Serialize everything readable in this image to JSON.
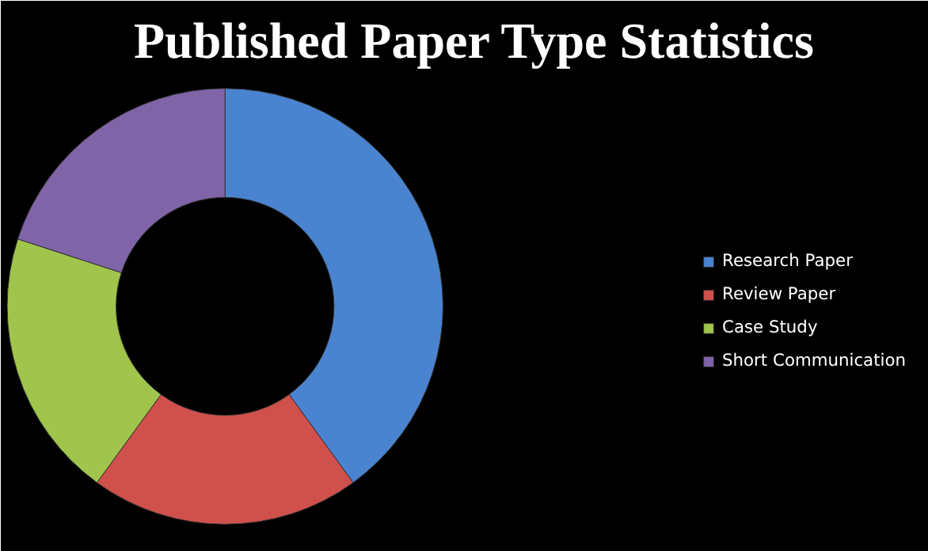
{
  "chart_data": {
    "type": "donut",
    "title": "Published Paper Type Statistics",
    "categories": [
      "Research Paper",
      "Review Paper",
      "Case Study",
      "Short Communication"
    ],
    "values": [
      40,
      20,
      20,
      20
    ],
    "colors": [
      "#4a84d0",
      "#d0504c",
      "#a0c44c",
      "#8064a8"
    ],
    "legend": "right"
  }
}
